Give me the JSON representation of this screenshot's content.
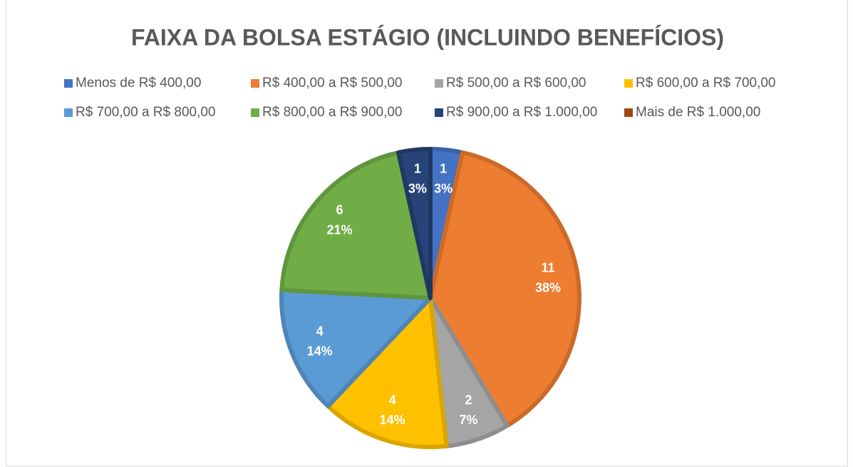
{
  "chart_data": {
    "type": "pie",
    "title": "FAIXA DA BOLSA ESTÁGIO (INCLUINDO BENEFÍCIOS)",
    "categories": [
      "Menos de R$ 400,00",
      "R$ 400,00 a R$ 500,00",
      "R$ 500,00 a R$ 600,00",
      "R$ 600,00 a R$ 700,00",
      "R$ 700,00 a R$ 800,00",
      "R$ 800,00 a R$ 900,00",
      "R$ 900,00 a R$ 1.000,00",
      "Mais de R$ 1.000,00"
    ],
    "values": [
      1,
      11,
      2,
      4,
      4,
      6,
      1,
      0
    ],
    "percent_labels": [
      "3%",
      "38%",
      "7%",
      "14%",
      "14%",
      "21%",
      "3%",
      null
    ],
    "colors": [
      "#4472c4",
      "#ed7d31",
      "#a5a5a5",
      "#ffc000",
      "#5b9bd5",
      "#70ad47",
      "#264478",
      "#9e480e"
    ],
    "edge_colors": [
      "#3a62a8",
      "#cc6a29",
      "#8e8e8e",
      "#dba500",
      "#4e85b7",
      "#60953d",
      "#1f3862",
      "#863d0c"
    ],
    "legend": "top"
  }
}
